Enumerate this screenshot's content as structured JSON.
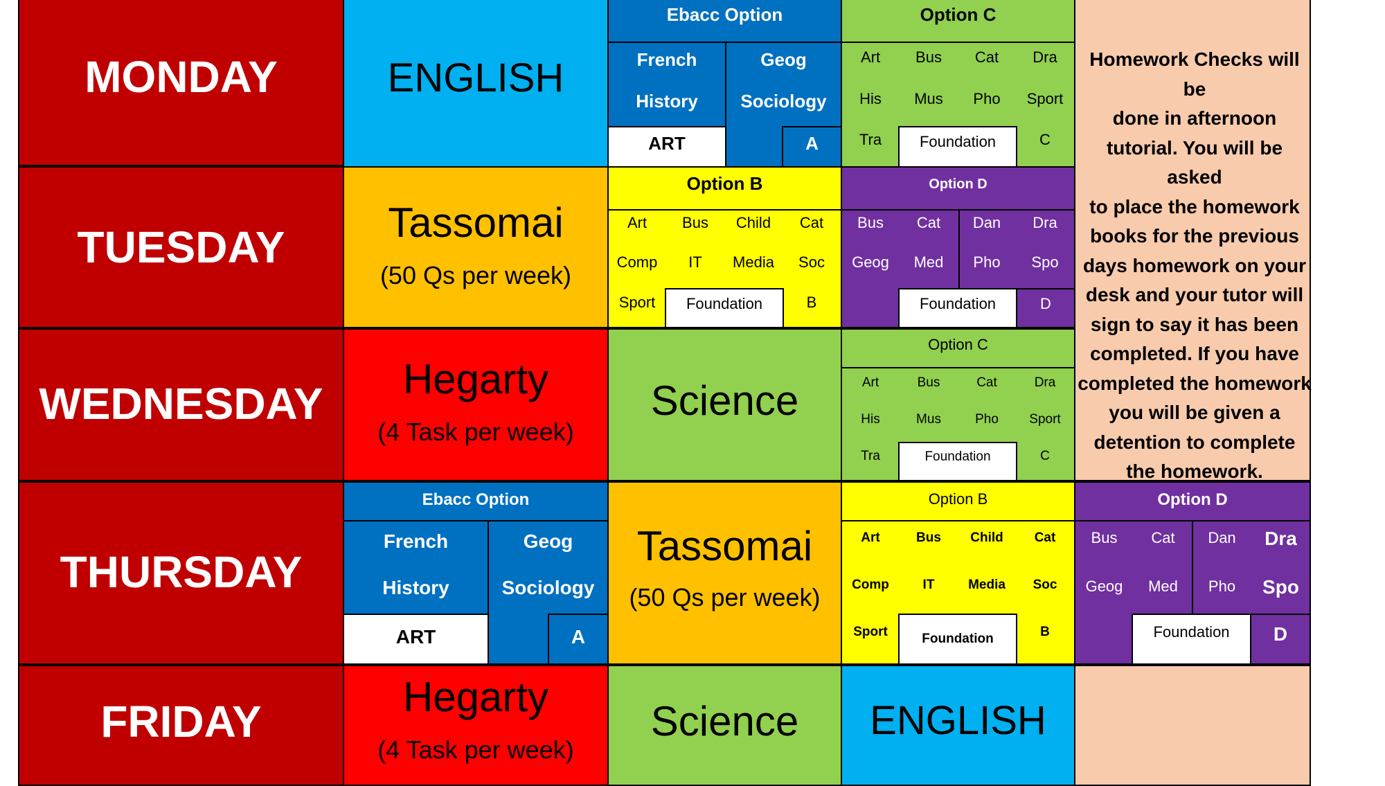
{
  "colors": {
    "day": "#c00000",
    "english": "#00b0f0",
    "tassomai": "#ffc000",
    "hegarty": "#ff0000",
    "science": "#92d050",
    "ebacc": "#0070c0",
    "option_b": "#ffff00",
    "option_c": "#92d050",
    "option_d": "#7030a0",
    "notes": "#f8cbad",
    "white": "#ffffff"
  },
  "days": {
    "monday": "MONDAY",
    "tuesday": "TUESDAY",
    "wednesday": "WEDNESDAY",
    "thursday": "THURSDAY",
    "friday": "FRIDAY"
  },
  "subjects": {
    "english": "ENGLISH",
    "tassomai": "Tassomai",
    "tassomai_sub": "(50 Qs per week)",
    "hegarty": "Hegarty",
    "hegarty_sub": "(4 Task per week)",
    "science": "Science"
  },
  "ebacc": {
    "title": "Ebacc Option",
    "french": "French",
    "history": "History",
    "geog": "Geog",
    "sociology": "Sociology",
    "art": "ART",
    "letter": "A"
  },
  "option_b": {
    "title": "Option B",
    "art": "Art",
    "bus": "Bus",
    "child": "Child",
    "cat": "Cat",
    "comp": "Comp",
    "it": "IT",
    "media": "Media",
    "soc": "Soc",
    "sport": "Sport",
    "foundation": "Foundation",
    "letter": "B"
  },
  "option_c": {
    "title": "Option C",
    "art": "Art",
    "bus": "Bus",
    "cat": "Cat",
    "dra": "Dra",
    "his": "His",
    "mus": "Mus",
    "pho": "Pho",
    "sport": "Sport",
    "tra": "Tra",
    "foundation": "Foundation",
    "letter": "C"
  },
  "option_d": {
    "title": "Option D",
    "bus": "Bus",
    "cat": "Cat",
    "dan": "Dan",
    "dra": "Dra",
    "geog": "Geog",
    "med": "Med",
    "pho": "Pho",
    "spo": "Spo",
    "foundation": "Foundation",
    "letter": "D"
  },
  "homework_note": [
    "Homework Checks will be",
    "done in afternoon",
    "tutorial. You will be asked",
    "to place the homework",
    "books for the previous",
    "days homework on your",
    "desk and your tutor will",
    "sign to say it has been",
    "completed. If you have",
    "completed the homework",
    "you will be given a",
    "detention to complete",
    "the homework."
  ]
}
